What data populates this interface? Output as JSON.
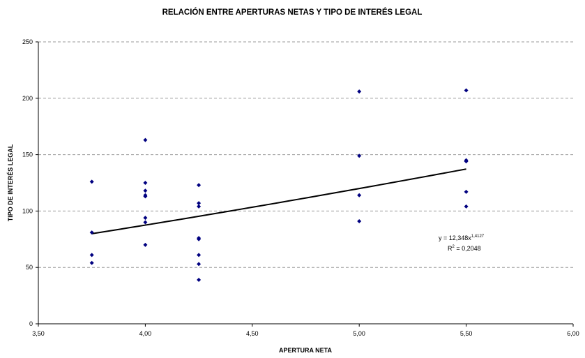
{
  "chart_data": {
    "type": "scatter",
    "title": "RELACIÓN ENTRE APERTURAS NETAS Y TIPO DE INTERÉS LEGAL",
    "xlabel": "APERTURA NETA",
    "ylabel": "TIPO DE INTERÉS LEGAL",
    "xlim": [
      3.5,
      6.0
    ],
    "ylim": [
      0,
      250
    ],
    "x_ticks": [
      3.5,
      4.0,
      4.5,
      5.0,
      5.5,
      6.0
    ],
    "x_tick_labels": [
      "3,50",
      "4,00",
      "4,50",
      "5,00",
      "5,50",
      "6,00"
    ],
    "y_ticks": [
      0,
      50,
      100,
      150,
      200,
      250
    ],
    "y_tick_labels": [
      "0",
      "50",
      "100",
      "150",
      "200",
      "250"
    ],
    "grid": "horizontal dashed",
    "legend": "none",
    "marker_color": "#000080",
    "series": [
      {
        "points": [
          [
            3.75,
            126
          ],
          [
            3.75,
            81
          ],
          [
            3.75,
            61
          ],
          [
            3.75,
            54
          ],
          [
            4.0,
            163
          ],
          [
            4.0,
            125
          ],
          [
            4.0,
            118
          ],
          [
            4.0,
            114
          ],
          [
            4.0,
            113
          ],
          [
            4.0,
            94
          ],
          [
            4.0,
            90
          ],
          [
            4.0,
            70
          ],
          [
            4.25,
            123
          ],
          [
            4.25,
            107
          ],
          [
            4.25,
            104
          ],
          [
            4.25,
            76
          ],
          [
            4.25,
            75
          ],
          [
            4.25,
            61
          ],
          [
            4.25,
            53
          ],
          [
            4.25,
            39
          ],
          [
            5.0,
            206
          ],
          [
            5.0,
            149
          ],
          [
            5.0,
            114
          ],
          [
            5.0,
            91
          ],
          [
            5.5,
            207
          ],
          [
            5.5,
            145
          ],
          [
            5.5,
            144
          ],
          [
            5.5,
            117
          ],
          [
            5.5,
            104
          ]
        ]
      }
    ],
    "trendline": {
      "type": "power",
      "coefficient": 12.348,
      "exponent": 1.4127,
      "x_range": [
        3.75,
        5.5
      ],
      "color": "#000000",
      "equation_text": "y = 12,348x",
      "equation_exponent": "1,4127",
      "r2_text": "R",
      "r2_exponent": "2",
      "r2_value": " = 0,2048"
    }
  }
}
